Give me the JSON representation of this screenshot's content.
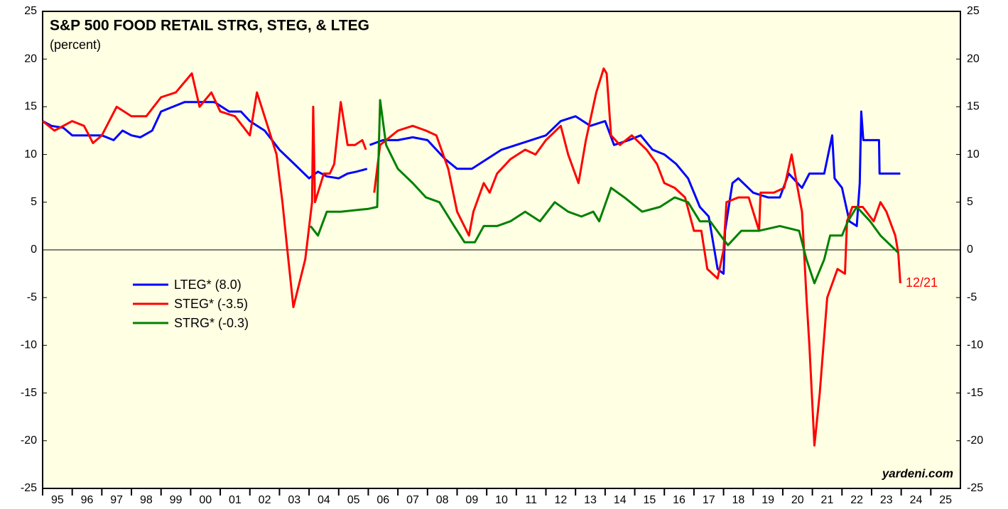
{
  "chart_data": {
    "type": "line",
    "title": "S&P 500 FOOD RETAIL STRG, STEG, & LTEG",
    "subtitle": "(percent)",
    "annotation": "12/21",
    "source": "yardeni.com",
    "xlim": [
      1995,
      2026
    ],
    "ylim": [
      -25,
      25
    ],
    "yticks": [
      -25,
      -20,
      -15,
      -10,
      -5,
      0,
      5,
      10,
      15,
      20,
      25
    ],
    "xticks": [
      {
        "value": 1995.5,
        "label": "95"
      },
      {
        "value": 1996.5,
        "label": "96"
      },
      {
        "value": 1997.5,
        "label": "97"
      },
      {
        "value": 1998.5,
        "label": "98"
      },
      {
        "value": 1999.5,
        "label": "99"
      },
      {
        "value": 2000.5,
        "label": "00"
      },
      {
        "value": 2001.5,
        "label": "01"
      },
      {
        "value": 2002.5,
        "label": "02"
      },
      {
        "value": 2003.5,
        "label": "03"
      },
      {
        "value": 2004.5,
        "label": "04"
      },
      {
        "value": 2005.5,
        "label": "05"
      },
      {
        "value": 2006.5,
        "label": "06"
      },
      {
        "value": 2007.5,
        "label": "07"
      },
      {
        "value": 2008.5,
        "label": "08"
      },
      {
        "value": 2009.5,
        "label": "09"
      },
      {
        "value": 2010.5,
        "label": "10"
      },
      {
        "value": 2011.5,
        "label": "11"
      },
      {
        "value": 2012.5,
        "label": "12"
      },
      {
        "value": 2013.5,
        "label": "13"
      },
      {
        "value": 2014.5,
        "label": "14"
      },
      {
        "value": 2015.5,
        "label": "15"
      },
      {
        "value": 2016.5,
        "label": "16"
      },
      {
        "value": 2017.5,
        "label": "17"
      },
      {
        "value": 2018.5,
        "label": "18"
      },
      {
        "value": 2019.5,
        "label": "19"
      },
      {
        "value": 2020.5,
        "label": "20"
      },
      {
        "value": 2021.5,
        "label": "21"
      },
      {
        "value": 2022.5,
        "label": "22"
      },
      {
        "value": 2023.5,
        "label": "23"
      },
      {
        "value": 2024.5,
        "label": "24"
      },
      {
        "value": 2025.5,
        "label": "25"
      }
    ],
    "series": [
      {
        "name": "LTEG* (8.0)",
        "color": "#0000ff",
        "x": [
          1995.0,
          1995.3,
          1995.7,
          1996.0,
          1996.5,
          1997.0,
          1997.4,
          1997.7,
          1998.0,
          1998.3,
          1998.7,
          1999.0,
          1999.4,
          1999.8,
          2000.2,
          2000.8,
          2001.3,
          2001.7,
          2002.0,
          2002.5,
          2003.0,
          2003.5,
          2004.0,
          2004.3,
          2004.6,
          2005.0,
          2005.3,
          2005.6,
          2005.96,
          2006.0,
          2006.05,
          2006.5,
          2007.0,
          2007.5,
          2008.0,
          2008.3,
          2008.6,
          2009.0,
          2009.5,
          2010.0,
          2010.5,
          2011.0,
          2011.5,
          2012.0,
          2012.5,
          2013.0,
          2013.5,
          2014.0,
          2014.3,
          2014.8,
          2015.2,
          2015.6,
          2016.0,
          2016.4,
          2016.8,
          2017.2,
          2017.5,
          2017.8,
          2018.0,
          2018.05,
          2018.3,
          2018.5,
          2019.0,
          2019.5,
          2019.9,
          2020.2,
          2020.65,
          2020.9,
          2021.4,
          2021.67,
          2021.75,
          2022.0,
          2022.25,
          2022.5,
          2022.6,
          2022.65,
          2022.72,
          2023.25,
          2023.27,
          2023.97
        ],
        "values": [
          13.5,
          13,
          12.8,
          12,
          12,
          12,
          11.5,
          12.5,
          12,
          11.8,
          12.5,
          14.5,
          15,
          15.5,
          15.5,
          15.5,
          14.5,
          14.5,
          13.5,
          12.5,
          10.5,
          9,
          7.5,
          8.2,
          7.7,
          7.5,
          8,
          8.2,
          8.5,
          null,
          11,
          11.5,
          11.5,
          11.8,
          11.5,
          10.5,
          9.5,
          8.5,
          8.5,
          9.5,
          10.5,
          11,
          11.5,
          12,
          13.5,
          14,
          13,
          13.5,
          11,
          11.5,
          12,
          10.5,
          10,
          9,
          7.5,
          4.5,
          3.5,
          -2,
          -2.5,
          2,
          7,
          7.5,
          6,
          5.5,
          5.5,
          8,
          6.5,
          8,
          8,
          12,
          7.5,
          6.5,
          3,
          2.5,
          7,
          14.5,
          11.5,
          11.5,
          8,
          8
        ]
      },
      {
        "name": "STEG* (-3.5)",
        "color": "#ff0000",
        "x": [
          1995.0,
          1995.4,
          1996.0,
          1996.4,
          1996.7,
          1997.0,
          1997.5,
          1998.0,
          1998.5,
          1999.0,
          1999.5,
          2000.04,
          2000.3,
          2000.7,
          2001.0,
          2001.5,
          2002.0,
          2002.24,
          2002.6,
          2002.9,
          2003.1,
          2003.3,
          2003.47,
          2003.87,
          2004.1,
          2004.14,
          2004.2,
          2004.5,
          2004.7,
          2004.85,
          2005.07,
          2005.3,
          2005.55,
          2005.8,
          2005.92,
          2006.0,
          2006.2,
          2006.4,
          2006.6,
          2007.0,
          2007.5,
          2007.95,
          2008.3,
          2008.7,
          2009.0,
          2009.4,
          2009.55,
          2009.9,
          2010.1,
          2010.35,
          2010.8,
          2011.3,
          2011.65,
          2012.0,
          2012.5,
          2012.75,
          2013.1,
          2013.35,
          2013.7,
          2013.95,
          2014.05,
          2014.2,
          2014.5,
          2014.9,
          2015.4,
          2015.75,
          2016.0,
          2016.35,
          2016.7,
          2017.0,
          2017.25,
          2017.45,
          2017.8,
          2018.0,
          2018.1,
          2018.5,
          2018.85,
          2019.2,
          2019.25,
          2019.7,
          2020.05,
          2020.3,
          2020.47,
          2020.65,
          2020.8,
          2020.9,
          2021.07,
          2021.25,
          2021.5,
          2021.85,
          2022.1,
          2022.17,
          2022.35,
          2022.7,
          2023.07,
          2023.3,
          2023.5,
          2023.8,
          2023.9,
          2023.97
        ],
        "values": [
          13.5,
          12.5,
          13.5,
          13,
          11.2,
          12,
          15,
          14,
          14,
          16,
          16.5,
          18.5,
          15,
          16.5,
          14.5,
          14,
          12,
          16.5,
          13,
          10,
          5,
          -1,
          -6,
          -1,
          5,
          15,
          5,
          8,
          8,
          9,
          15.5,
          11,
          11,
          11.5,
          10.5,
          null,
          6,
          11,
          11.5,
          12.5,
          13,
          12.5,
          12,
          8.5,
          4,
          1.5,
          4,
          7,
          6,
          8,
          9.5,
          10.5,
          10,
          11.5,
          13,
          10,
          7,
          11.5,
          16.5,
          19,
          18.5,
          12,
          11,
          12,
          10.5,
          9,
          7,
          6.5,
          5.5,
          2,
          2,
          -2,
          -3,
          0,
          5,
          5.5,
          5.5,
          2,
          6,
          6,
          6.5,
          10,
          7,
          4,
          -5,
          -10,
          -20.5,
          -15,
          -5,
          -2,
          -2.5,
          3,
          4.5,
          4.5,
          3,
          5,
          4,
          1.5,
          -0.3,
          -3.5
        ]
      },
      {
        "name": "STRG* (-0.3)",
        "color": "#008000",
        "x": [
          2004.05,
          2004.3,
          2004.6,
          2005.07,
          2006.0,
          2006.3,
          2006.4,
          2006.6,
          2007.0,
          2007.5,
          2007.95,
          2008.4,
          2008.9,
          2009.25,
          2009.6,
          2009.9,
          2010.35,
          2010.8,
          2011.3,
          2011.8,
          2012.3,
          2012.75,
          2013.2,
          2013.6,
          2013.8,
          2014.2,
          2014.65,
          2015.25,
          2015.85,
          2016.35,
          2016.8,
          2017.2,
          2017.55,
          2017.9,
          2018.15,
          2018.6,
          2019.2,
          2019.9,
          2020.55,
          2020.8,
          2021.07,
          2021.4,
          2021.6,
          2022.0,
          2022.2,
          2022.5,
          2022.95,
          2023.3,
          2023.9
        ],
        "values": [
          2.5,
          1.5,
          4,
          4,
          4.3,
          4.5,
          15.7,
          11,
          8.5,
          7,
          5.5,
          5,
          2.5,
          0.8,
          0.8,
          2.5,
          2.5,
          3,
          4,
          3,
          5,
          4,
          3.5,
          4,
          3,
          6.5,
          5.5,
          4,
          4.5,
          5.5,
          5,
          3,
          3,
          1.5,
          0.5,
          2,
          2,
          2.5,
          2,
          -1,
          -3.5,
          -1,
          1.5,
          1.5,
          3,
          4.5,
          3,
          1.5,
          -0.3
        ]
      }
    ]
  }
}
